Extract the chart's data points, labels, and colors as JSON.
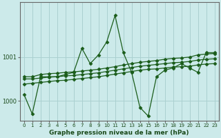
{
  "xlabel": "Graphe pression niveau de la mer (hPa)",
  "background_color": "#cceaea",
  "grid_color": "#aad0d0",
  "line_color": "#1a5c1a",
  "ylim_min": 999.55,
  "ylim_max": 1002.25,
  "yticks": [
    1000,
    1001
  ],
  "ytick_labels": [
    "1000",
    "1001"
  ],
  "s_volatile": [
    1000.15,
    999.7,
    1000.55,
    1000.55,
    1000.55,
    1000.6,
    1000.65,
    1001.2,
    1000.85,
    1001.05,
    1001.35,
    1001.95,
    1001.1,
    1000.65,
    999.85,
    999.65,
    1000.55,
    1000.7,
    1000.75,
    1000.85,
    1000.75,
    1000.65,
    1001.1,
    1001.1
  ],
  "s_upper": [
    1000.55,
    1000.55,
    1000.6,
    1000.62,
    1000.63,
    1000.65,
    1000.66,
    1000.68,
    1000.7,
    1000.72,
    1000.75,
    1000.78,
    1000.82,
    1000.85,
    1000.88,
    1000.9,
    1000.92,
    1000.95,
    1000.97,
    1000.98,
    1001.0,
    1001.05,
    1001.07,
    1001.08
  ],
  "s_mid": [
    1000.5,
    1000.5,
    1000.52,
    1000.54,
    1000.55,
    1000.57,
    1000.58,
    1000.6,
    1000.62,
    1000.64,
    1000.67,
    1000.7,
    1000.73,
    1000.76,
    1000.79,
    1000.81,
    1000.83,
    1000.85,
    1000.87,
    1000.88,
    1000.9,
    1000.93,
    1000.95,
    1000.96
  ],
  "s_lower": [
    1000.38,
    1000.4,
    1000.42,
    1000.44,
    1000.46,
    1000.47,
    1000.49,
    1000.51,
    1000.53,
    1000.55,
    1000.58,
    1000.61,
    1000.64,
    1000.67,
    1000.7,
    1000.72,
    1000.73,
    1000.75,
    1000.77,
    1000.78,
    1000.79,
    1000.82,
    1000.84,
    1000.85
  ]
}
